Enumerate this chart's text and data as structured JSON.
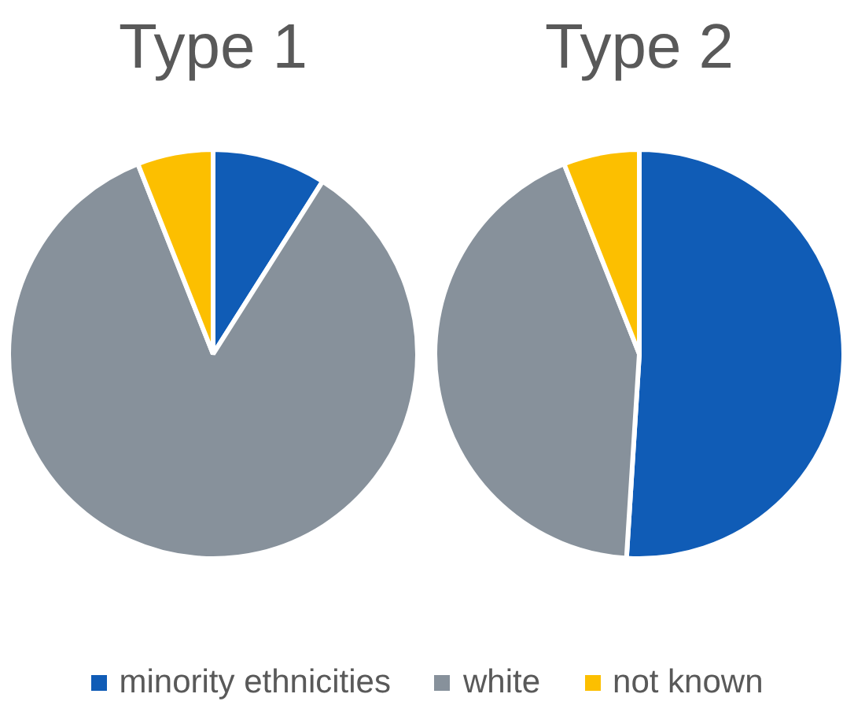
{
  "chart_data": [
    {
      "type": "pie",
      "title": "Type 1",
      "categories": [
        "minority ethnicities",
        "white",
        "not known"
      ],
      "values": [
        9,
        85,
        6
      ],
      "colors": [
        "#105cb6",
        "#87919b",
        "#fcbf00"
      ],
      "legend": "bottom"
    },
    {
      "type": "pie",
      "title": "Type 2",
      "categories": [
        null,
        null,
        null
      ],
      "values": [
        51,
        43,
        6
      ],
      "colors": [
        "#105cb6",
        "#87919b",
        "#fcbf00"
      ]
    }
  ]
}
